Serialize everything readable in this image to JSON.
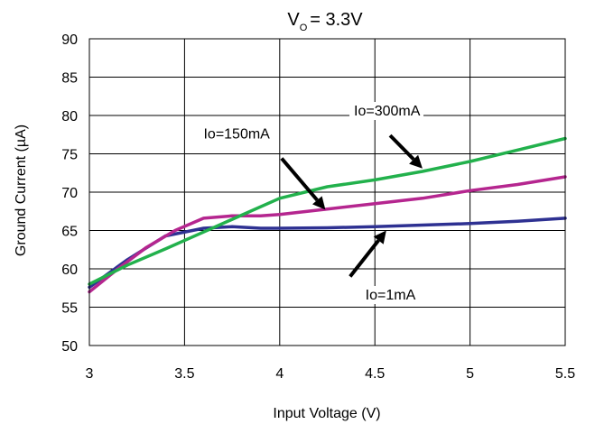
{
  "chart_data": {
    "type": "line",
    "title_main": "V",
    "title_sub": "O",
    "title_rest": "= 3.3V",
    "xlabel": "Input Voltage (V)",
    "ylabel": "Ground Current (µA)",
    "xlim": [
      3,
      5.5
    ],
    "ylim": [
      50,
      90
    ],
    "xticks": [
      3,
      3.5,
      4,
      4.5,
      5,
      5.5
    ],
    "xtick_labels": [
      "3",
      "3.5",
      "4",
      "4.5",
      "5",
      "5.5"
    ],
    "yticks": [
      50,
      55,
      60,
      65,
      70,
      75,
      80,
      85,
      90
    ],
    "ytick_labels": [
      "50",
      "55",
      "60",
      "65",
      "70",
      "75",
      "80",
      "85",
      "90"
    ],
    "grid": true,
    "series": [
      {
        "name": "Io=1mA",
        "color": "#2e3192",
        "points": [
          [
            3.0,
            57.6
          ],
          [
            3.2,
            61.2
          ],
          [
            3.4,
            64.3
          ],
          [
            3.6,
            65.3
          ],
          [
            3.75,
            65.5
          ],
          [
            3.9,
            65.3
          ],
          [
            4.0,
            65.3
          ],
          [
            4.25,
            65.35
          ],
          [
            4.5,
            65.5
          ],
          [
            4.75,
            65.7
          ],
          [
            5.0,
            65.9
          ],
          [
            5.25,
            66.2
          ],
          [
            5.5,
            66.6
          ]
        ]
      },
      {
        "name": "Io=150mA",
        "color": "#b5268f",
        "points": [
          [
            3.0,
            57.0
          ],
          [
            3.15,
            60.0
          ],
          [
            3.3,
            62.8
          ],
          [
            3.45,
            65.0
          ],
          [
            3.6,
            66.6
          ],
          [
            3.75,
            66.9
          ],
          [
            3.9,
            66.9
          ],
          [
            4.0,
            67.1
          ],
          [
            4.25,
            67.8
          ],
          [
            4.5,
            68.5
          ],
          [
            4.75,
            69.2
          ],
          [
            5.0,
            70.2
          ],
          [
            5.25,
            71.0
          ],
          [
            5.5,
            72.0
          ]
        ]
      },
      {
        "name": "Io=300mA",
        "color": "#22b14c",
        "points": [
          [
            3.0,
            58.0
          ],
          [
            3.2,
            60.5
          ],
          [
            3.4,
            62.6
          ],
          [
            3.6,
            64.8
          ],
          [
            3.8,
            67.0
          ],
          [
            4.0,
            69.2
          ],
          [
            4.25,
            70.7
          ],
          [
            4.5,
            71.6
          ],
          [
            4.75,
            72.7
          ],
          [
            5.0,
            74.0
          ],
          [
            5.25,
            75.5
          ],
          [
            5.5,
            77.0
          ]
        ]
      }
    ],
    "annotations": [
      {
        "text": "Io=300mA",
        "series": "Io=300mA",
        "label_at": [
          4.39,
          80.0
        ],
        "arrow_from": [
          4.58,
          77.4
        ],
        "arrow_to": [
          4.75,
          73.1
        ]
      },
      {
        "text": "Io=150mA",
        "series": "Io=150mA",
        "label_at": [
          3.6,
          77.0
        ],
        "arrow_from": [
          4.01,
          74.4
        ],
        "arrow_to": [
          4.24,
          67.7
        ]
      },
      {
        "text": "Io=1mA",
        "series": "Io=1mA",
        "label_at": [
          4.45,
          56.0
        ],
        "arrow_from": [
          4.37,
          59.0
        ],
        "arrow_to": [
          4.56,
          65.0
        ]
      }
    ]
  }
}
